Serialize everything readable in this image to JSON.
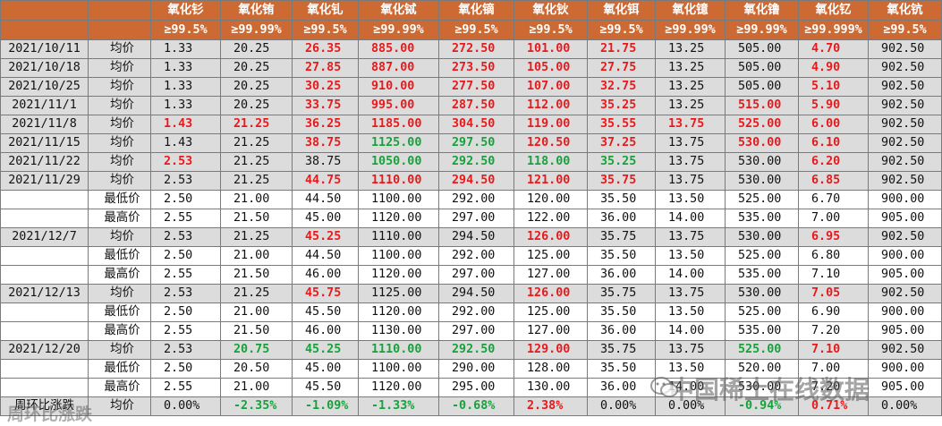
{
  "header": {
    "row1": [
      "",
      "",
      "氧化钐",
      "氧化铕",
      "氧化钆",
      "氧化铽",
      "氧化镝",
      "氧化钬",
      "氧化铒",
      "氧化镱",
      "氧化镥",
      "氧化钇",
      "氧化钪"
    ],
    "row2": [
      "",
      "",
      "≥99.5%",
      "≥99.99%",
      "≥99.5%",
      "≥99.99%",
      "≥99.5%",
      "≥99.5%",
      "≥99.5%",
      "≥99.99%",
      "≥99.99%",
      "≥99.999%",
      "≥99.5%"
    ]
  },
  "rows": [
    {
      "date": "2021/10/11",
      "type": "均价",
      "bg": "grey",
      "cells": [
        {
          "v": "1.33"
        },
        {
          "v": "20.25"
        },
        {
          "v": "26.35",
          "c": "red"
        },
        {
          "v": "885.00",
          "c": "red"
        },
        {
          "v": "272.50",
          "c": "red"
        },
        {
          "v": "101.00",
          "c": "red"
        },
        {
          "v": "21.75",
          "c": "red"
        },
        {
          "v": "13.25"
        },
        {
          "v": "505.00"
        },
        {
          "v": "4.70",
          "c": "red"
        },
        {
          "v": "902.50"
        }
      ]
    },
    {
      "date": "2021/10/18",
      "type": "均价",
      "bg": "grey",
      "cells": [
        {
          "v": "1.33"
        },
        {
          "v": "20.25"
        },
        {
          "v": "27.85",
          "c": "red"
        },
        {
          "v": "887.00",
          "c": "red"
        },
        {
          "v": "273.50",
          "c": "red"
        },
        {
          "v": "105.00",
          "c": "red"
        },
        {
          "v": "27.75",
          "c": "red"
        },
        {
          "v": "13.25"
        },
        {
          "v": "505.00"
        },
        {
          "v": "4.90",
          "c": "red"
        },
        {
          "v": "902.50"
        }
      ]
    },
    {
      "date": "2021/10/25",
      "type": "均价",
      "bg": "grey",
      "cells": [
        {
          "v": "1.33"
        },
        {
          "v": "20.25"
        },
        {
          "v": "30.25",
          "c": "red"
        },
        {
          "v": "910.00",
          "c": "red"
        },
        {
          "v": "277.50",
          "c": "red"
        },
        {
          "v": "107.00",
          "c": "red"
        },
        {
          "v": "32.75",
          "c": "red"
        },
        {
          "v": "13.25"
        },
        {
          "v": "505.00"
        },
        {
          "v": "5.10",
          "c": "red"
        },
        {
          "v": "902.50"
        }
      ]
    },
    {
      "date": "2021/11/1",
      "type": "均价",
      "bg": "grey",
      "cells": [
        {
          "v": "1.33"
        },
        {
          "v": "20.25"
        },
        {
          "v": "33.75",
          "c": "red"
        },
        {
          "v": "995.00",
          "c": "red"
        },
        {
          "v": "287.50",
          "c": "red"
        },
        {
          "v": "112.00",
          "c": "red"
        },
        {
          "v": "35.25",
          "c": "red"
        },
        {
          "v": "13.25"
        },
        {
          "v": "515.00",
          "c": "red"
        },
        {
          "v": "5.90",
          "c": "red"
        },
        {
          "v": "902.50"
        }
      ]
    },
    {
      "date": "2021/11/8",
      "type": "均价",
      "bg": "grey",
      "cells": [
        {
          "v": "1.43",
          "c": "red"
        },
        {
          "v": "21.25",
          "c": "red"
        },
        {
          "v": "36.25",
          "c": "red"
        },
        {
          "v": "1185.00",
          "c": "red"
        },
        {
          "v": "304.50",
          "c": "red"
        },
        {
          "v": "119.00",
          "c": "red"
        },
        {
          "v": "35.55",
          "c": "red"
        },
        {
          "v": "13.75",
          "c": "red"
        },
        {
          "v": "525.00",
          "c": "red"
        },
        {
          "v": "6.00",
          "c": "red"
        },
        {
          "v": "902.50"
        }
      ]
    },
    {
      "date": "2021/11/15",
      "type": "均价",
      "bg": "grey",
      "cells": [
        {
          "v": "1.43"
        },
        {
          "v": "21.25"
        },
        {
          "v": "38.75",
          "c": "red"
        },
        {
          "v": "1125.00",
          "c": "green"
        },
        {
          "v": "297.50",
          "c": "green"
        },
        {
          "v": "120.50",
          "c": "red"
        },
        {
          "v": "37.25",
          "c": "red"
        },
        {
          "v": "13.75"
        },
        {
          "v": "530.00",
          "c": "red"
        },
        {
          "v": "6.10",
          "c": "red"
        },
        {
          "v": "902.50"
        }
      ]
    },
    {
      "date": "2021/11/22",
      "type": "均价",
      "bg": "grey",
      "cells": [
        {
          "v": "2.53",
          "c": "red"
        },
        {
          "v": "21.25"
        },
        {
          "v": "38.75"
        },
        {
          "v": "1050.00",
          "c": "green"
        },
        {
          "v": "292.50",
          "c": "green"
        },
        {
          "v": "118.00",
          "c": "green"
        },
        {
          "v": "35.25",
          "c": "green"
        },
        {
          "v": "13.75"
        },
        {
          "v": "530.00"
        },
        {
          "v": "6.20",
          "c": "red"
        },
        {
          "v": "902.50"
        }
      ]
    },
    {
      "date": "2021/11/29",
      "type": "均价",
      "bg": "grey",
      "cells": [
        {
          "v": "2.53"
        },
        {
          "v": "21.25"
        },
        {
          "v": "44.75",
          "c": "red"
        },
        {
          "v": "1110.00",
          "c": "red"
        },
        {
          "v": "294.50",
          "c": "red"
        },
        {
          "v": "121.00",
          "c": "red"
        },
        {
          "v": "35.75",
          "c": "red"
        },
        {
          "v": "13.75"
        },
        {
          "v": "530.00"
        },
        {
          "v": "6.85",
          "c": "red"
        },
        {
          "v": "902.50"
        }
      ]
    },
    {
      "date": "",
      "type": "最低价",
      "bg": "white",
      "cells": [
        {
          "v": "2.50"
        },
        {
          "v": "21.00"
        },
        {
          "v": "44.50"
        },
        {
          "v": "1100.00"
        },
        {
          "v": "292.00"
        },
        {
          "v": "120.00"
        },
        {
          "v": "35.50"
        },
        {
          "v": "13.50"
        },
        {
          "v": "525.00"
        },
        {
          "v": "6.70"
        },
        {
          "v": "900.00"
        }
      ]
    },
    {
      "date": "",
      "type": "最高价",
      "bg": "white",
      "cells": [
        {
          "v": "2.55"
        },
        {
          "v": "21.50"
        },
        {
          "v": "45.00"
        },
        {
          "v": "1120.00"
        },
        {
          "v": "297.00"
        },
        {
          "v": "122.00"
        },
        {
          "v": "36.00"
        },
        {
          "v": "14.00"
        },
        {
          "v": "535.00"
        },
        {
          "v": "7.00"
        },
        {
          "v": "905.00"
        }
      ]
    },
    {
      "date": "2021/12/7",
      "type": "均价",
      "bg": "grey",
      "cells": [
        {
          "v": "2.53"
        },
        {
          "v": "21.25"
        },
        {
          "v": "45.25",
          "c": "red"
        },
        {
          "v": "1110.00"
        },
        {
          "v": "294.50"
        },
        {
          "v": "126.00",
          "c": "red"
        },
        {
          "v": "35.75"
        },
        {
          "v": "13.75"
        },
        {
          "v": "530.00"
        },
        {
          "v": "6.95",
          "c": "red"
        },
        {
          "v": "902.50"
        }
      ]
    },
    {
      "date": "",
      "type": "最低价",
      "bg": "white",
      "cells": [
        {
          "v": "2.50"
        },
        {
          "v": "21.00"
        },
        {
          "v": "44.50"
        },
        {
          "v": "1100.00"
        },
        {
          "v": "292.00"
        },
        {
          "v": "125.00"
        },
        {
          "v": "35.50"
        },
        {
          "v": "13.50"
        },
        {
          "v": "525.00"
        },
        {
          "v": "6.80"
        },
        {
          "v": "900.00"
        }
      ]
    },
    {
      "date": "",
      "type": "最高价",
      "bg": "white",
      "cells": [
        {
          "v": "2.55"
        },
        {
          "v": "21.50"
        },
        {
          "v": "46.00"
        },
        {
          "v": "1120.00"
        },
        {
          "v": "297.00"
        },
        {
          "v": "127.00"
        },
        {
          "v": "36.00"
        },
        {
          "v": "14.00"
        },
        {
          "v": "535.00"
        },
        {
          "v": "7.10"
        },
        {
          "v": "905.00"
        }
      ]
    },
    {
      "date": "2021/12/13",
      "type": "均价",
      "bg": "grey",
      "cells": [
        {
          "v": "2.53"
        },
        {
          "v": "21.25"
        },
        {
          "v": "45.75",
          "c": "red"
        },
        {
          "v": "1125.00"
        },
        {
          "v": "294.50"
        },
        {
          "v": "126.00",
          "c": "red"
        },
        {
          "v": "35.75"
        },
        {
          "v": "13.75"
        },
        {
          "v": "530.00"
        },
        {
          "v": "7.05",
          "c": "red"
        },
        {
          "v": "902.50"
        }
      ]
    },
    {
      "date": "",
      "type": "最低价",
      "bg": "white",
      "cells": [
        {
          "v": "2.50"
        },
        {
          "v": "21.00"
        },
        {
          "v": "45.50"
        },
        {
          "v": "1120.00"
        },
        {
          "v": "292.00"
        },
        {
          "v": "125.00"
        },
        {
          "v": "35.50"
        },
        {
          "v": "13.50"
        },
        {
          "v": "525.00"
        },
        {
          "v": "6.90"
        },
        {
          "v": "900.00"
        }
      ]
    },
    {
      "date": "",
      "type": "最高价",
      "bg": "white",
      "cells": [
        {
          "v": "2.55"
        },
        {
          "v": "21.50"
        },
        {
          "v": "46.00"
        },
        {
          "v": "1130.00"
        },
        {
          "v": "297.00"
        },
        {
          "v": "127.00"
        },
        {
          "v": "36.00"
        },
        {
          "v": "14.00"
        },
        {
          "v": "535.00"
        },
        {
          "v": "7.20"
        },
        {
          "v": "905.00"
        }
      ]
    },
    {
      "date": "2021/12/20",
      "type": "均价",
      "bg": "grey",
      "cells": [
        {
          "v": "2.53"
        },
        {
          "v": "20.75",
          "c": "green"
        },
        {
          "v": "45.25",
          "c": "green"
        },
        {
          "v": "1110.00",
          "c": "green"
        },
        {
          "v": "292.50",
          "c": "green"
        },
        {
          "v": "129.00",
          "c": "red"
        },
        {
          "v": "35.75"
        },
        {
          "v": "13.75"
        },
        {
          "v": "525.00",
          "c": "green"
        },
        {
          "v": "7.10",
          "c": "red"
        },
        {
          "v": "902.50"
        }
      ]
    },
    {
      "date": "",
      "type": "最低价",
      "bg": "white",
      "cells": [
        {
          "v": "2.50"
        },
        {
          "v": "20.50"
        },
        {
          "v": "45.00"
        },
        {
          "v": "1100.00"
        },
        {
          "v": "290.00"
        },
        {
          "v": "128.00"
        },
        {
          "v": "35.50"
        },
        {
          "v": "13.50"
        },
        {
          "v": "520.00"
        },
        {
          "v": "7.00"
        },
        {
          "v": "900.00"
        }
      ]
    },
    {
      "date": "",
      "type": "最高价",
      "bg": "white",
      "cells": [
        {
          "v": "2.55"
        },
        {
          "v": "21.00"
        },
        {
          "v": "45.50"
        },
        {
          "v": "1120.00"
        },
        {
          "v": "295.00"
        },
        {
          "v": "130.00"
        },
        {
          "v": "36.00"
        },
        {
          "v": "14.00"
        },
        {
          "v": "530.00"
        },
        {
          "v": "7.20"
        },
        {
          "v": "905.00"
        }
      ]
    },
    {
      "date": "周环比涨跌",
      "type": "均价",
      "bg": "grey",
      "cells": [
        {
          "v": "0.00%"
        },
        {
          "v": "-2.35%",
          "c": "green"
        },
        {
          "v": "-1.09%",
          "c": "green"
        },
        {
          "v": "-1.33%",
          "c": "green"
        },
        {
          "v": "-0.68%",
          "c": "green"
        },
        {
          "v": "2.38%",
          "c": "red"
        },
        {
          "v": "0.00%"
        },
        {
          "v": "0.00%"
        },
        {
          "v": "-0.94%",
          "c": "green"
        },
        {
          "v": "0.71%",
          "c": "red"
        },
        {
          "v": "0.00%"
        }
      ]
    }
  ],
  "colors": {
    "header_bg": "#cd6a33",
    "header_text": "#ffffff",
    "row_grey": "#dcdcdc",
    "up_red": "#e8191b",
    "down_green": "#16a23a"
  },
  "watermark": {
    "right": "中国稀土在线数据",
    "left": "周环比涨跌",
    "icon": "wechat-icon"
  }
}
